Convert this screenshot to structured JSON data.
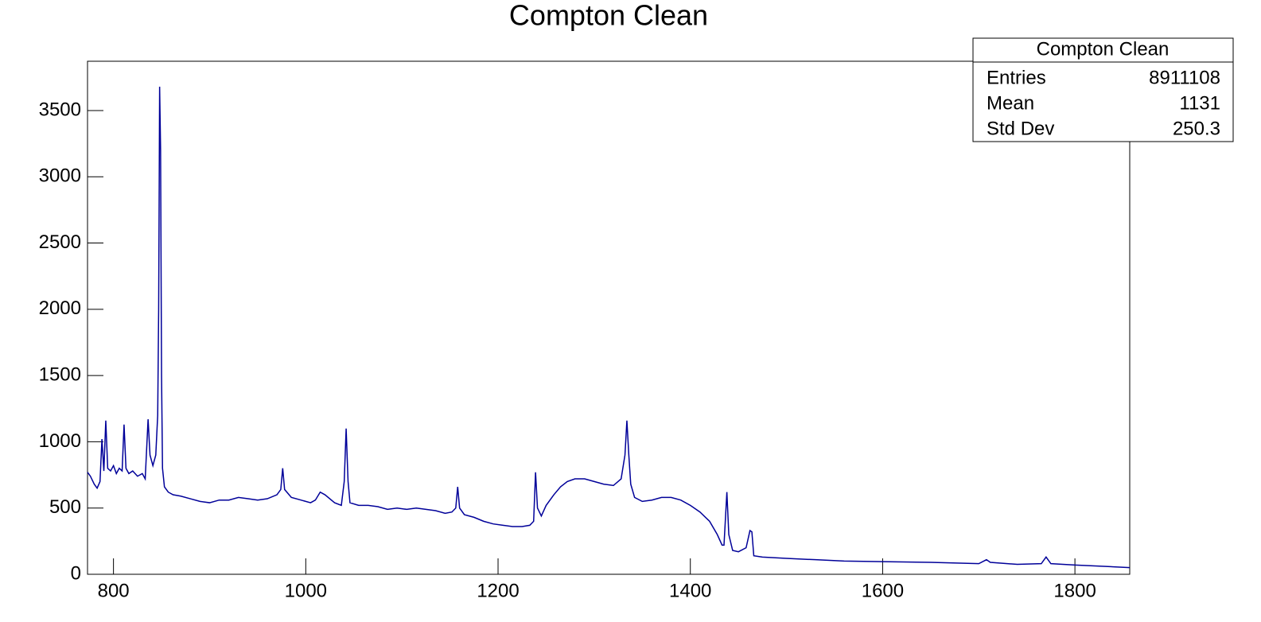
{
  "chart_data": {
    "type": "line",
    "title": "Compton Clean",
    "color": "#000099",
    "x": [
      773,
      776,
      780,
      783,
      786,
      788,
      790,
      792,
      794,
      797,
      800,
      803,
      806,
      809,
      811,
      813,
      816,
      820,
      825,
      830,
      833,
      836,
      838,
      841,
      844,
      846,
      847,
      848,
      849,
      850,
      851,
      853,
      857,
      862,
      870,
      880,
      890,
      900,
      910,
      920,
      930,
      940,
      950,
      960,
      970,
      974,
      976,
      978,
      985,
      995,
      1005,
      1010,
      1015,
      1020,
      1030,
      1037,
      1040,
      1042,
      1044,
      1046,
      1055,
      1065,
      1075,
      1085,
      1095,
      1105,
      1115,
      1125,
      1135,
      1145,
      1152,
      1156,
      1158,
      1160,
      1165,
      1175,
      1185,
      1195,
      1205,
      1215,
      1225,
      1233,
      1237,
      1239,
      1241,
      1245,
      1250,
      1258,
      1265,
      1272,
      1280,
      1290,
      1300,
      1310,
      1320,
      1328,
      1332,
      1334,
      1336,
      1338,
      1342,
      1350,
      1360,
      1370,
      1380,
      1390,
      1400,
      1410,
      1420,
      1428,
      1433,
      1435,
      1438,
      1440,
      1444,
      1450,
      1458,
      1462,
      1464,
      1466,
      1475,
      1500,
      1530,
      1560,
      1600,
      1650,
      1700,
      1708,
      1712,
      1740,
      1765,
      1770,
      1775,
      1800,
      1830,
      1857
    ],
    "values": [
      770,
      740,
      680,
      650,
      700,
      1020,
      780,
      1160,
      800,
      780,
      820,
      760,
      800,
      780,
      1130,
      800,
      760,
      780,
      740,
      760,
      720,
      1170,
      900,
      820,
      900,
      1200,
      2000,
      3680,
      3200,
      1500,
      800,
      660,
      620,
      600,
      590,
      570,
      550,
      540,
      560,
      560,
      580,
      570,
      560,
      570,
      600,
      640,
      800,
      640,
      580,
      560,
      540,
      560,
      620,
      600,
      540,
      520,
      700,
      1100,
      700,
      540,
      520,
      520,
      510,
      490,
      500,
      490,
      500,
      490,
      480,
      460,
      470,
      500,
      660,
      500,
      450,
      430,
      400,
      380,
      370,
      360,
      360,
      370,
      400,
      770,
      500,
      440,
      520,
      600,
      660,
      700,
      720,
      720,
      700,
      680,
      670,
      720,
      900,
      1160,
      900,
      680,
      580,
      550,
      560,
      580,
      580,
      560,
      520,
      470,
      400,
      300,
      220,
      220,
      620,
      300,
      180,
      170,
      200,
      330,
      320,
      140,
      130,
      120,
      110,
      100,
      95,
      90,
      80,
      110,
      90,
      75,
      80,
      130,
      80,
      70,
      60,
      50
    ],
    "xlim": [
      773,
      1857
    ],
    "ylim": [
      0,
      3872
    ],
    "xticks": [
      800,
      1000,
      1200,
      1400,
      1600,
      1800
    ],
    "yticks": [
      0,
      500,
      1000,
      1500,
      2000,
      2500,
      3000,
      3500
    ],
    "stats": {
      "title": "Compton Clean",
      "rows": [
        [
          "Entries",
          "8911108"
        ],
        [
          "Mean",
          "1131"
        ],
        [
          "Std Dev",
          "250.3"
        ]
      ]
    }
  }
}
